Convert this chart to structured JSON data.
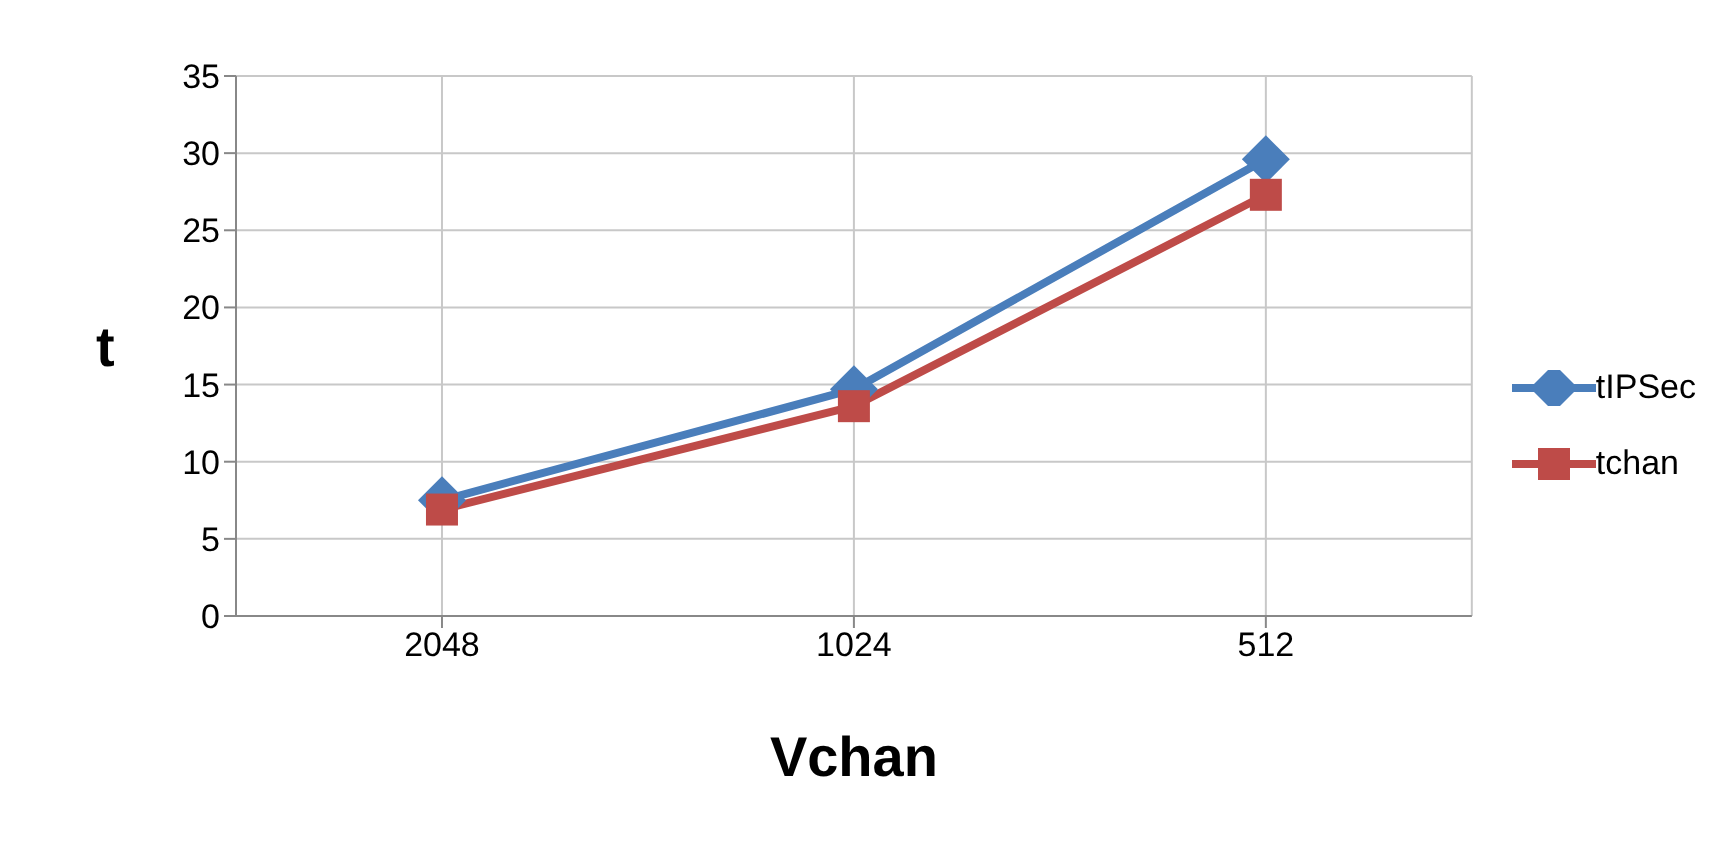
{
  "chart_data": {
    "type": "line",
    "xlabel": "Vchan",
    "ylabel": "t",
    "categories": [
      "2048",
      "1024",
      "512"
    ],
    "series": [
      {
        "name": "tIPSec",
        "color": "#4a7ebb",
        "marker": "diamond",
        "values": [
          7.5,
          14.7,
          29.6
        ]
      },
      {
        "name": "tchan",
        "color": "#be4b48",
        "marker": "square",
        "values": [
          6.9,
          13.6,
          27.3
        ]
      }
    ],
    "ylim": [
      0,
      35
    ],
    "yticks": [
      0,
      5,
      10,
      15,
      20,
      25,
      30,
      35
    ],
    "grid": true,
    "legend": "right",
    "line_style": "solid"
  }
}
